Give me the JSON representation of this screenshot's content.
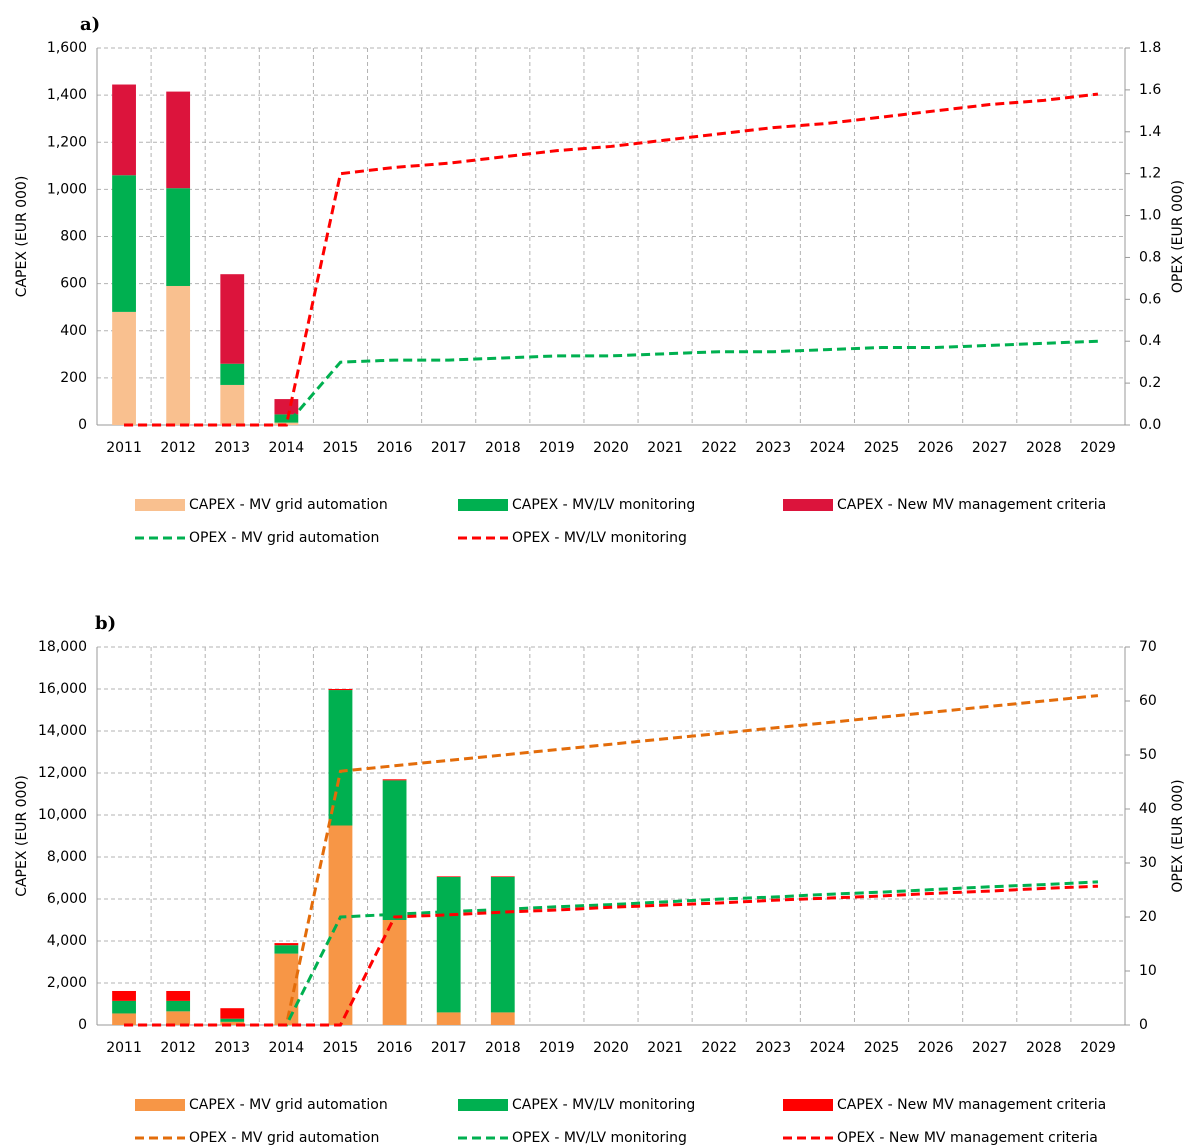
{
  "chart_data": [
    {
      "type": "bar",
      "title": "a)",
      "ylabel": "CAPEX (EUR 000)",
      "y2label": "OPEX (EUR 000)",
      "stacked": true,
      "grid": true,
      "categories": [
        "2011",
        "2012",
        "2013",
        "2014",
        "2015",
        "2016",
        "2017",
        "2018",
        "2019",
        "2020",
        "2021",
        "2022",
        "2023",
        "2024",
        "2025",
        "2026",
        "2027",
        "2028",
        "2029"
      ],
      "ylim": [
        0,
        1600
      ],
      "yticks": [
        0,
        200,
        400,
        600,
        800,
        {
          "value": 1000,
          "label": "1,000"
        },
        {
          "value": 1200,
          "label": "1,200"
        },
        {
          "value": 1400,
          "label": "1,400"
        },
        {
          "value": 1600,
          "label": "1,600"
        }
      ],
      "y2lim": [
        0,
        1.8
      ],
      "y2ticks": [
        {
          "value": 0,
          "label": "0.0"
        },
        0.2,
        0.4,
        0.6,
        0.8,
        {
          "value": 1,
          "label": "1.0"
        },
        1.2,
        1.4,
        1.6,
        1.8
      ],
      "series": [
        {
          "name": "CAPEX - MV grid automation",
          "type": "bar",
          "color": "#f9c08f",
          "values": [
            480,
            590,
            170,
            10,
            0,
            0,
            0,
            0,
            0,
            0,
            0,
            0,
            0,
            0,
            0,
            0,
            0,
            0,
            0
          ]
        },
        {
          "name": "CAPEX - MV/LV monitoring",
          "type": "bar",
          "color": "#00b050",
          "values": [
            580,
            415,
            90,
            35,
            0,
            0,
            0,
            0,
            0,
            0,
            0,
            0,
            0,
            0,
            0,
            0,
            0,
            0,
            0
          ]
        },
        {
          "name": "CAPEX - New MV management criteria",
          "type": "bar",
          "color": "#dc143c",
          "values": [
            385,
            410,
            380,
            65,
            0,
            0,
            0,
            0,
            0,
            0,
            0,
            0,
            0,
            0,
            0,
            0,
            0,
            0,
            0
          ]
        },
        {
          "name": "OPEX - MV grid automation",
          "type": "line",
          "axis": "y2",
          "dashed": true,
          "color": "#00b050",
          "values": [
            0,
            0,
            0,
            0,
            0.3,
            0.31,
            0.31,
            0.32,
            0.33,
            0.33,
            0.34,
            0.35,
            0.35,
            0.36,
            0.37,
            0.37,
            0.38,
            0.39,
            0.4
          ]
        },
        {
          "name": "OPEX - MV/LV monitoring",
          "type": "line",
          "axis": "y2",
          "dashed": true,
          "color": "#ff0000",
          "values": [
            0,
            0,
            0,
            0,
            1.2,
            1.23,
            1.25,
            1.28,
            1.31,
            1.33,
            1.36,
            1.39,
            1.42,
            1.44,
            1.47,
            1.5,
            1.53,
            1.55,
            1.58
          ]
        }
      ]
    },
    {
      "type": "bar",
      "title": "b)",
      "ylabel": "CAPEX (EUR 000)",
      "y2label": "OPEX (EUR 000)",
      "stacked": true,
      "grid": true,
      "categories": [
        "2011",
        "2012",
        "2013",
        "2014",
        "2015",
        "2016",
        "2017",
        "2018",
        "2019",
        "2020",
        "2021",
        "2022",
        "2023",
        "2024",
        "2025",
        "2026",
        "2027",
        "2028",
        "2029"
      ],
      "ylim": [
        0,
        18000
      ],
      "yticks": [
        0,
        {
          "value": 2000,
          "label": "2,000"
        },
        {
          "value": 4000,
          "label": "4,000"
        },
        {
          "value": 6000,
          "label": "6,000"
        },
        {
          "value": 8000,
          "label": "8,000"
        },
        {
          "value": 10000,
          "label": "10,000"
        },
        {
          "value": 12000,
          "label": "12,000"
        },
        {
          "value": 14000,
          "label": "14,000"
        },
        {
          "value": 16000,
          "label": "16,000"
        },
        {
          "value": 18000,
          "label": "18,000"
        }
      ],
      "y2lim": [
        0,
        70
      ],
      "y2ticks": [
        0,
        10,
        20,
        30,
        40,
        50,
        60,
        70
      ],
      "series": [
        {
          "name": "CAPEX - MV grid automation",
          "type": "bar",
          "color": "#f79646",
          "values": [
            550,
            650,
            150,
            3400,
            9500,
            5000,
            600,
            600,
            0,
            0,
            0,
            0,
            0,
            0,
            0,
            0,
            0,
            0,
            0
          ]
        },
        {
          "name": "CAPEX - MV/LV monitoring",
          "type": "bar",
          "color": "#00b050",
          "values": [
            600,
            500,
            150,
            400,
            6450,
            6650,
            6450,
            6450,
            0,
            0,
            0,
            0,
            0,
            0,
            0,
            0,
            0,
            0,
            0
          ]
        },
        {
          "name": "CAPEX - New MV management criteria",
          "type": "bar",
          "color": "#ff0000",
          "values": [
            470,
            470,
            500,
            100,
            50,
            50,
            30,
            30,
            0,
            0,
            0,
            0,
            0,
            0,
            0,
            0,
            0,
            0,
            0
          ]
        },
        {
          "name": "OPEX - MV grid automation",
          "type": "line",
          "axis": "y2",
          "dashed": true,
          "color": "#e36c0a",
          "values": [
            0,
            0,
            0,
            0,
            47,
            48,
            49,
            50,
            51,
            52,
            53,
            54,
            55,
            56,
            57,
            58,
            59,
            60,
            61
          ]
        },
        {
          "name": "OPEX - MV/LV monitoring",
          "type": "line",
          "axis": "y2",
          "dashed": true,
          "color": "#00b050",
          "values": [
            0,
            0,
            0,
            0,
            20,
            20.5,
            21.0,
            21.4,
            21.9,
            22.3,
            22.8,
            23.3,
            23.7,
            24.2,
            24.6,
            25.1,
            25.6,
            26.0,
            26.5
          ]
        },
        {
          "name": "OPEX - New MV management criteria",
          "type": "line",
          "axis": "y2",
          "dashed": true,
          "color": "#ff0000",
          "values": [
            0,
            0,
            0,
            0,
            0,
            20,
            20.4,
            20.9,
            21.3,
            21.8,
            22.2,
            22.6,
            23.1,
            23.5,
            23.9,
            24.4,
            24.8,
            25.3,
            25.7
          ]
        }
      ]
    }
  ]
}
